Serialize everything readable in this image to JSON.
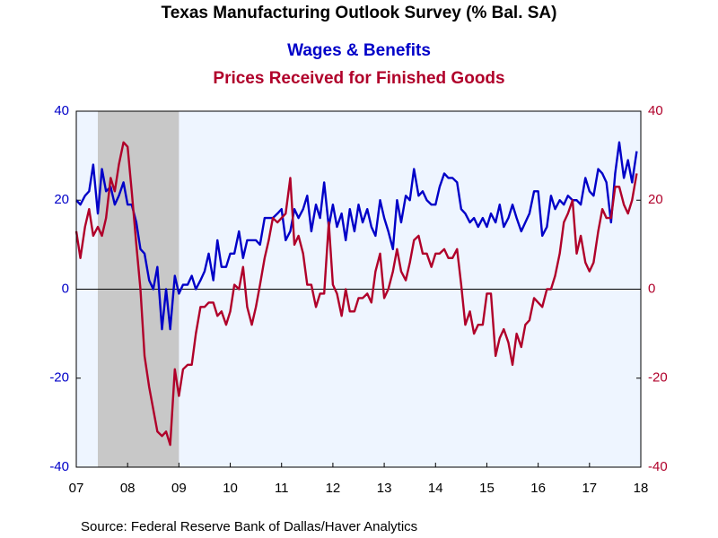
{
  "chart_data": {
    "type": "line",
    "title": "Texas Manufacturing Outlook Survey (% Bal. SA)",
    "source": "Source:  Federal Reserve Bank of Dallas/Haver Analytics",
    "x": [
      2007.5,
      2007.58,
      2007.67,
      2007.75,
      2007.83,
      2007.92,
      2008,
      2008.08,
      2008.17,
      2008.25,
      2008.33,
      2008.42,
      2008.5,
      2008.58,
      2008.67,
      2008.75,
      2008.83,
      2008.92,
      2009,
      2009.08,
      2009.17,
      2009.25,
      2009.33,
      2009.42,
      2009.5,
      2009.58,
      2009.67,
      2009.75,
      2009.83,
      2009.92,
      2010,
      2010.08,
      2010.17,
      2010.25,
      2010.33,
      2010.42,
      2010.5,
      2010.58,
      2010.67,
      2010.75,
      2010.83,
      2010.92,
      2011,
      2011.08,
      2011.17,
      2011.25,
      2011.33,
      2011.42,
      2011.5,
      2011.58,
      2011.67,
      2011.75,
      2011.83,
      2011.92,
      2012,
      2012.08,
      2012.17,
      2012.25,
      2012.33,
      2012.42,
      2012.5,
      2012.58,
      2012.67,
      2012.75,
      2012.83,
      2012.92,
      2013,
      2013.08,
      2013.17,
      2013.25,
      2013.33,
      2013.42,
      2013.5,
      2013.58,
      2013.67,
      2013.75,
      2013.83,
      2013.92,
      2014,
      2014.08,
      2014.17,
      2014.25,
      2014.33,
      2014.42,
      2014.5,
      2014.58,
      2014.67,
      2014.75,
      2014.83,
      2014.92,
      2015,
      2015.08,
      2015.17,
      2015.25,
      2015.33,
      2015.42,
      2015.5,
      2015.58,
      2015.67,
      2015.75,
      2015.83,
      2015.92,
      2016,
      2016.08,
      2016.17,
      2016.25,
      2016.33,
      2016.42,
      2016.5,
      2016.58,
      2016.67,
      2016.75,
      2016.83,
      2016.92,
      2017,
      2017.08,
      2017.17,
      2017.25,
      2017.33,
      2017.42,
      2017.5,
      2017.58,
      2017.67,
      2017.75,
      2017.83,
      2017.92,
      2018,
      2018.08,
      2018.17,
      2018.25,
      2018.33,
      2018.42
    ],
    "series": [
      {
        "name": "Wages & Benefits",
        "color": "#0000c8",
        "axis": "y",
        "values": [
          20,
          19,
          21,
          22,
          28,
          17,
          27,
          22,
          23,
          19,
          21,
          24,
          19,
          19,
          15,
          9,
          8,
          2,
          0,
          5,
          -9,
          0,
          -9,
          3,
          -1,
          1,
          1,
          3,
          0,
          2,
          4,
          8,
          2,
          11,
          5,
          5,
          8,
          8,
          13,
          7,
          11,
          11,
          11,
          10,
          16,
          16,
          16,
          17,
          18,
          11,
          13,
          18,
          16,
          18,
          21,
          13,
          19,
          16,
          24,
          14,
          19,
          14,
          17,
          11,
          18,
          13,
          19,
          15,
          18,
          14,
          12,
          20,
          16,
          13,
          9,
          20,
          15,
          21,
          20,
          27,
          21,
          22,
          20,
          19,
          19,
          23,
          26,
          25,
          25,
          24,
          18,
          17,
          15,
          16,
          14,
          16,
          14,
          17,
          15,
          19,
          14,
          16,
          19,
          16,
          13,
          15,
          17,
          22,
          22,
          12,
          14,
          21,
          18,
          20,
          19,
          21,
          20,
          20,
          19,
          25,
          22,
          21,
          27,
          26,
          24,
          15,
          26,
          33,
          25,
          29,
          24,
          31
        ]
      },
      {
        "name": "Prices Received for Finished Goods",
        "color": "#b0002a",
        "axis": "y2",
        "values": [
          13,
          7,
          14,
          18,
          12,
          14,
          12,
          16,
          25,
          22,
          28,
          33,
          32,
          22,
          10,
          0,
          -15,
          -22,
          -27,
          -32,
          -33,
          -32,
          -35,
          -18,
          -24,
          -18,
          -17,
          -17,
          -10,
          -4,
          -4,
          -3,
          -3,
          -6,
          -5,
          -8,
          -5,
          1,
          0,
          5,
          -4,
          -8,
          -4,
          1,
          7,
          11,
          16,
          15,
          16,
          17,
          25,
          10,
          12,
          8,
          1,
          1,
          -4,
          -1,
          -1,
          15,
          1,
          -1,
          -6,
          0,
          -5,
          -5,
          -2,
          -2,
          -1,
          -3,
          4,
          8,
          -2,
          0,
          4,
          9,
          4,
          2,
          6,
          11,
          12,
          8,
          8,
          5,
          8,
          8,
          9,
          7,
          7,
          9,
          1,
          -8,
          -5,
          -10,
          -8,
          -8,
          -1,
          -1,
          -15,
          -11,
          -9,
          -12,
          -17,
          -10,
          -13,
          -8,
          -7,
          -2,
          -3,
          -4,
          0,
          0,
          3,
          8,
          15,
          17,
          20,
          8,
          12,
          6,
          4,
          6,
          13,
          18,
          16,
          16,
          23,
          23,
          19,
          17,
          20,
          26
        ]
      }
    ],
    "shade": [
      [
        2007.92,
        2009.5
      ]
    ],
    "xlim": [
      2007.5,
      2018.5
    ],
    "xticks": [
      {
        "value": 2007.5,
        "label": "07"
      },
      {
        "value": 2008.5,
        "label": "08"
      },
      {
        "value": 2009.5,
        "label": "09"
      },
      {
        "value": 2010.5,
        "label": "10"
      },
      {
        "value": 2011.5,
        "label": "11"
      },
      {
        "value": 2012.5,
        "label": "12"
      },
      {
        "value": 2013.5,
        "label": "13"
      },
      {
        "value": 2014.5,
        "label": "14"
      },
      {
        "value": 2015.5,
        "label": "15"
      },
      {
        "value": 2016.5,
        "label": "16"
      },
      {
        "value": 2017.5,
        "label": "17"
      },
      {
        "value": 2018.5,
        "label": "18"
      }
    ],
    "ylim": [
      -40,
      40
    ],
    "yticks": [
      -40,
      -20,
      0,
      20,
      40
    ],
    "y2lim": [
      -40,
      40
    ],
    "y2ticks": [
      -40,
      -20,
      0,
      20,
      40
    ]
  }
}
